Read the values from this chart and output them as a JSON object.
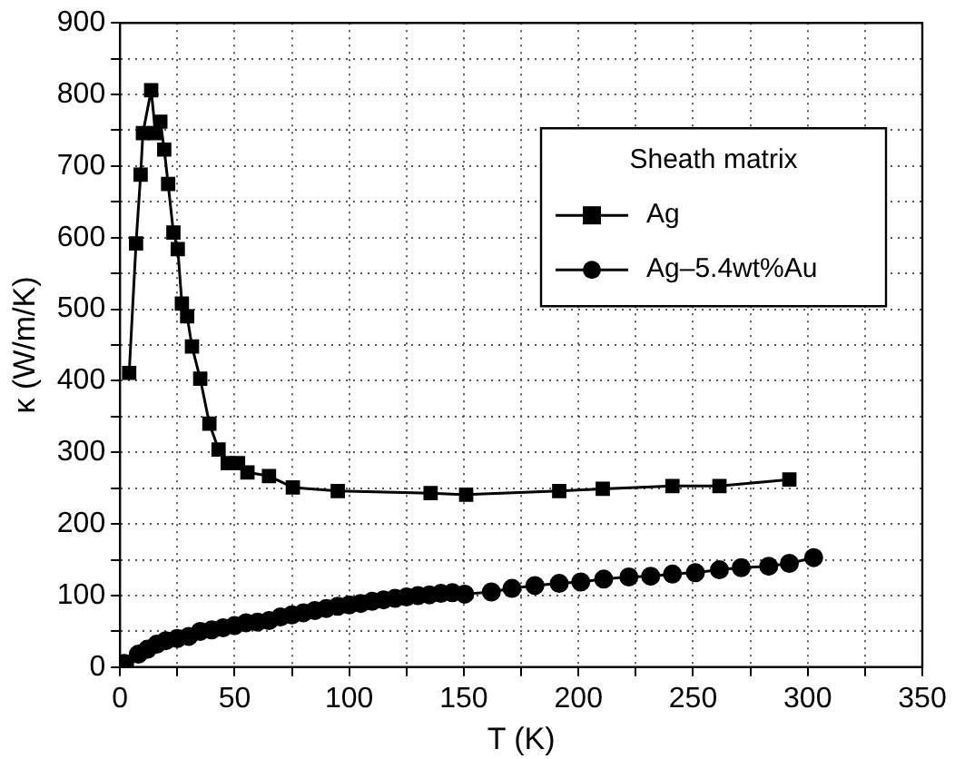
{
  "chart_data": {
    "type": "line",
    "xlabel": "T (K)",
    "ylabel": "κ (W/m/K)",
    "legend_title": "Sheath matrix",
    "legend": "top right",
    "grid": true,
    "xlim": [
      0,
      350
    ],
    "xticks": [
      0,
      {
        "value": 25,
        "label": null
      },
      50,
      {
        "value": 75,
        "label": null
      },
      100,
      {
        "value": 125,
        "label": null
      },
      150,
      {
        "value": 175,
        "label": null
      },
      200,
      {
        "value": 225,
        "label": null
      },
      250,
      {
        "value": 275,
        "label": null
      },
      300,
      {
        "value": 325,
        "label": null
      },
      350
    ],
    "ylim": [
      0,
      900
    ],
    "yticks": [
      0,
      {
        "value": 50,
        "label": null
      },
      100,
      {
        "value": 150,
        "label": null
      },
      200,
      {
        "value": 250,
        "label": null
      },
      300,
      {
        "value": 350,
        "label": null
      },
      400,
      {
        "value": 450,
        "label": null
      },
      500,
      {
        "value": 550,
        "label": null
      },
      600,
      {
        "value": 650,
        "label": null
      },
      700,
      {
        "value": 750,
        "label": null
      },
      800,
      {
        "value": 850,
        "label": null
      },
      900
    ],
    "series": [
      {
        "name": "Ag",
        "color": "#000000",
        "marker": "square",
        "x": [
          4,
          7,
          9,
          10,
          13.6,
          15.5,
          17.6,
          19.3,
          21,
          23.3,
          25.2,
          27,
          29.3,
          31.4,
          35,
          39,
          43,
          47,
          51.5,
          55.6,
          65,
          75.4,
          95,
          135.5,
          151,
          191.6,
          210.6,
          241,
          261.5,
          292
        ],
        "values": [
          411,
          592,
          688,
          746,
          806,
          746,
          762,
          723,
          675,
          607,
          584,
          508,
          490,
          448,
          403,
          340,
          304,
          285,
          285,
          272,
          267,
          251,
          246,
          243,
          241,
          246,
          249,
          253,
          253,
          262
        ]
      },
      {
        "name": "Ag–5.4wt%Au",
        "color": "#000000",
        "marker": "circle",
        "x": [
          2,
          8,
          12,
          16,
          20,
          25,
          30,
          35,
          40,
          45,
          50,
          55,
          60,
          65,
          70,
          75,
          80,
          85,
          90,
          95,
          100,
          105,
          110,
          115,
          120,
          125,
          130,
          135,
          140,
          145,
          150.4,
          162,
          171,
          181,
          191.6,
          201,
          211,
          222,
          231.5,
          241,
          251,
          261.5,
          271,
          283,
          292,
          302.6
        ],
        "values": [
          5,
          18,
          25,
          32,
          37,
          40,
          43,
          50,
          52,
          55,
          58,
          62,
          63,
          65,
          70,
          73,
          76,
          79,
          82,
          85,
          87,
          89,
          92,
          94,
          96,
          98,
          100,
          101,
          103,
          104,
          102,
          105,
          110,
          114,
          117,
          119,
          123,
          126,
          127,
          130,
          132,
          136,
          139,
          141,
          145,
          153
        ]
      }
    ]
  }
}
